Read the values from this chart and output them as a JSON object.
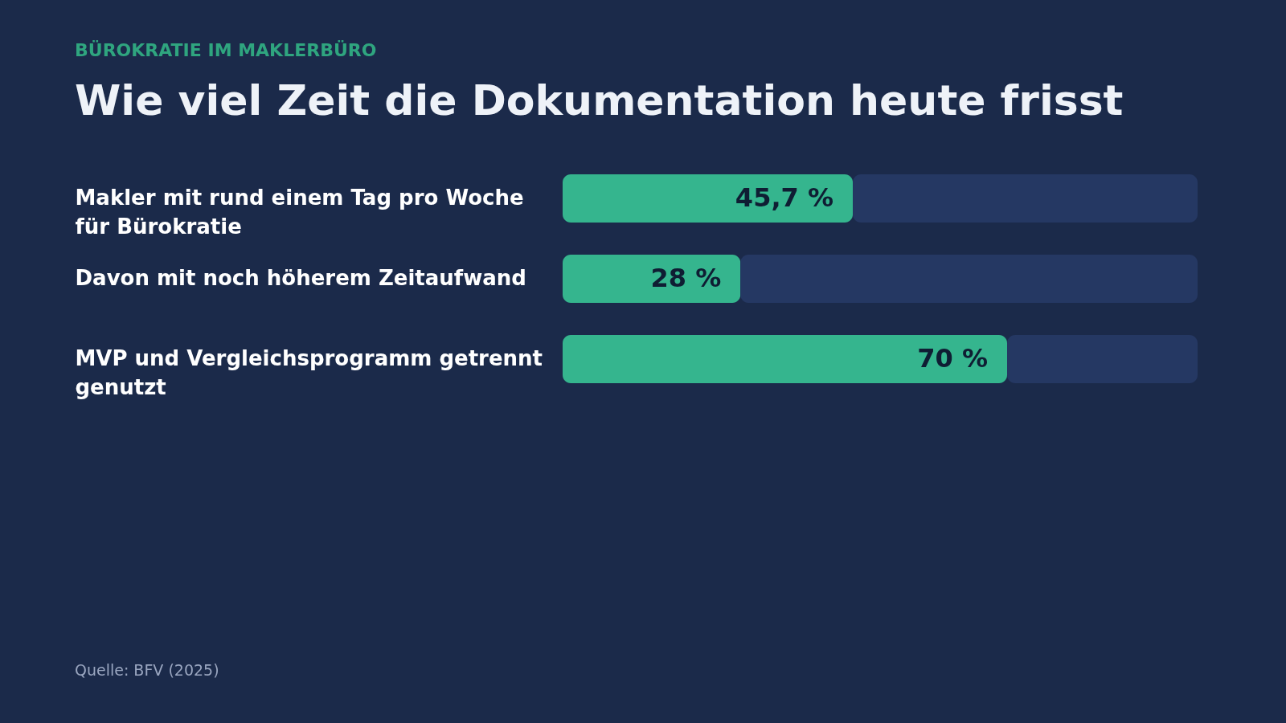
{
  "chart_data": {
    "type": "bar",
    "orientation": "horizontal",
    "stacked": true,
    "subtitle": "BÜROKRATIE IM MAKLERBÜRO",
    "title": "Wie viel Zeit die Dokumentation heute frisst",
    "categories": [
      "Makler mit rund einem Tag pro Woche für Bürokratie",
      "Davon mit noch höherem Zeitaufwand",
      "MVP und Vergleichsprogramm getrennt genutzt"
    ],
    "series": [
      {
        "color": "#35b58e",
        "values": [
          45.7,
          28,
          70
        ],
        "value_labels": [
          "45,7 %",
          "28 %",
          "70 %"
        ]
      },
      {
        "color": "#253863",
        "values": [
          54.3,
          72,
          30
        ]
      }
    ],
    "xlim": [
      0,
      100
    ],
    "annotations": [
      "Quelle: BFV (2025)"
    ]
  }
}
